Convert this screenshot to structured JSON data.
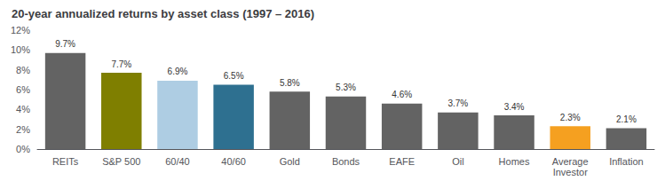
{
  "chart_data": {
    "type": "bar",
    "title": "20-year annualized returns by asset class (1997 – 2016)",
    "categories": [
      "REITs",
      "S&P 500",
      "60/40",
      "40/60",
      "Gold",
      "Bonds",
      "EAFE",
      "Oil",
      "Homes",
      "Average\nInvestor",
      "Inflation"
    ],
    "values": [
      9.7,
      7.7,
      6.9,
      6.5,
      5.8,
      5.3,
      4.6,
      3.7,
      3.4,
      2.3,
      2.1
    ],
    "value_labels": [
      "9.7%",
      "7.7%",
      "6.9%",
      "6.5%",
      "5.8%",
      "5.3%",
      "4.6%",
      "3.7%",
      "3.4%",
      "2.3%",
      "2.1%"
    ],
    "colors": [
      "#636363",
      "#7f7f00",
      "#aecde3",
      "#2e7090",
      "#636363",
      "#636363",
      "#636363",
      "#636363",
      "#636363",
      "#f5a020",
      "#636363"
    ],
    "ylim": [
      0,
      12
    ],
    "yticks": [
      {
        "value": 0,
        "label": "0%"
      },
      {
        "value": 2,
        "label": "2%"
      },
      {
        "value": 4,
        "label": "4%"
      },
      {
        "value": 6,
        "label": "6%"
      },
      {
        "value": 8,
        "label": "8%"
      },
      {
        "value": 10,
        "label": "10%"
      },
      {
        "value": 12,
        "label": "12%"
      }
    ],
    "grid": false,
    "data_labels": true
  }
}
